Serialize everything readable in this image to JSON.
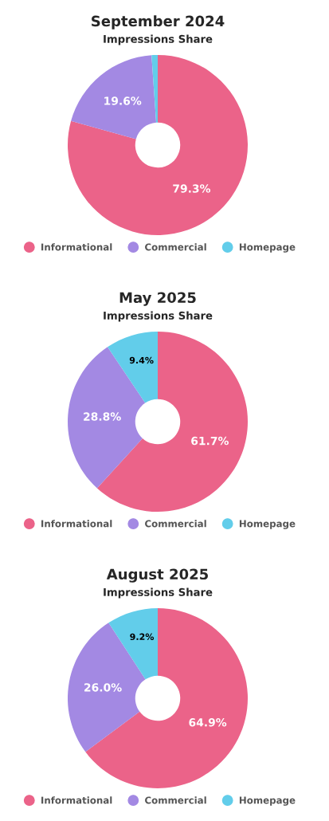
{
  "chart_data": [
    {
      "type": "donut",
      "title": "September 2024",
      "subtitle": "Impressions Share",
      "categories": [
        "Informational",
        "Commercial",
        "Homepage"
      ],
      "values": [
        79.3,
        19.6,
        1.1
      ],
      "value_labels": [
        "79.3%",
        "19.6%",
        null
      ],
      "colors": [
        "#eb6389",
        "#a389e3",
        "#62cdea"
      ],
      "legend": "bottom"
    },
    {
      "type": "donut",
      "title": "May 2025",
      "subtitle": "Impressions Share",
      "categories": [
        "Informational",
        "Commercial",
        "Homepage"
      ],
      "values": [
        61.7,
        28.8,
        9.4
      ],
      "value_labels": [
        "61.7%",
        "28.8%",
        "9.4%"
      ],
      "colors": [
        "#eb6389",
        "#a389e3",
        "#62cdea"
      ],
      "legend": "bottom"
    },
    {
      "type": "donut",
      "title": "August 2025",
      "subtitle": "Impressions Share",
      "categories": [
        "Informational",
        "Commercial",
        "Homepage"
      ],
      "values": [
        64.9,
        26.0,
        9.2
      ],
      "value_labels": [
        "64.9%",
        "26.0%",
        "9.2%"
      ],
      "colors": [
        "#eb6389",
        "#a389e3",
        "#62cdea"
      ],
      "legend": "bottom"
    }
  ]
}
